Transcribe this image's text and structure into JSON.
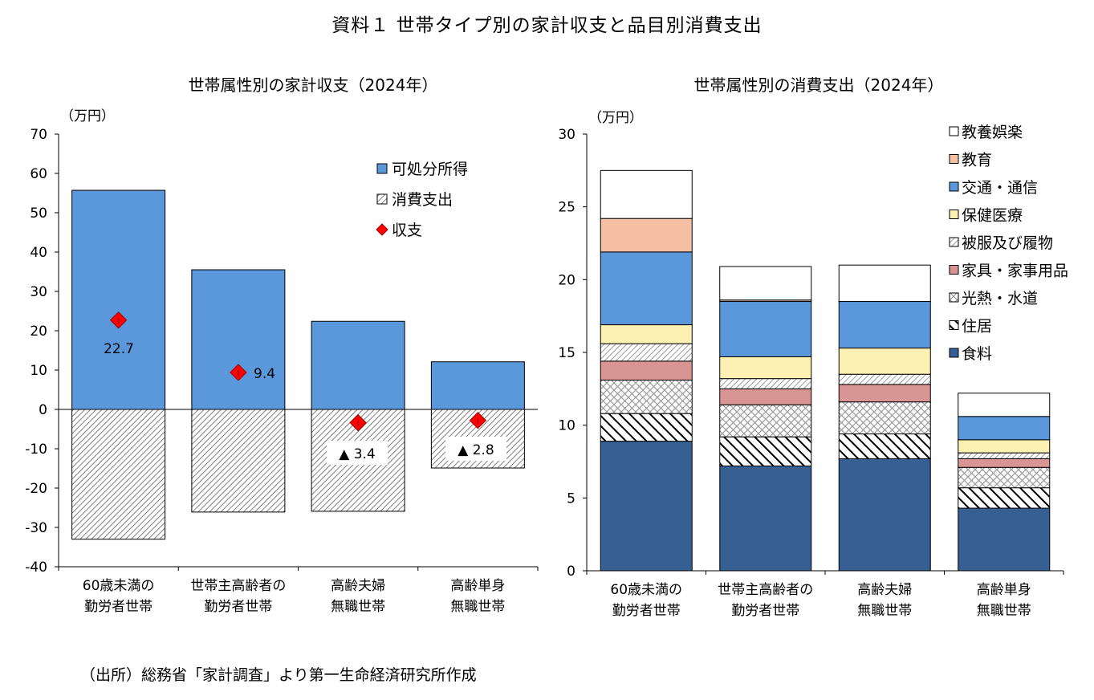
{
  "title": "資料１ 世帯タイプ別の家計収支と品目別消費支出",
  "source": "（出所）総務省「家計調査」より第一生命経済研究所作成",
  "colors": {
    "disposable": "#5b97db",
    "consumption_hatch": "#7f7f7f",
    "balance": "#ff0000",
    "food": "#365f93",
    "housing": "#000000",
    "utilities": "#9a9a9a",
    "furniture": "#d99593",
    "clothing": "#808080",
    "health": "#fdf0b3",
    "transport": "#5b97db",
    "education": "#f5c0a4",
    "recreation": "#ffffff"
  },
  "chart_data": [
    {
      "type": "bar",
      "title": "世帯属性別の家計収支（2024年）",
      "unit_label": "（万円）",
      "categories": [
        [
          "60歳未満の",
          "勤労者世帯"
        ],
        [
          "世帯主高齢者の",
          "勤労者世帯"
        ],
        [
          "高齢夫婦",
          "無職世帯"
        ],
        [
          "高齢単身",
          "無職世帯"
        ]
      ],
      "ylim": [
        -40,
        70
      ],
      "yticks": [
        70,
        60,
        50,
        40,
        30,
        20,
        10,
        0,
        -10,
        -20,
        -30,
        -40
      ],
      "series": [
        {
          "name": "可処分所得",
          "values": [
            55.7,
            35.5,
            22.4,
            12.1
          ]
        },
        {
          "name": "消費支出",
          "values": [
            -33.0,
            -26.1,
            -25.9,
            -14.9
          ]
        },
        {
          "name": "収支",
          "values": [
            22.7,
            9.4,
            -3.4,
            -2.8
          ]
        }
      ],
      "data_labels": [
        "22.7",
        "9.4",
        "▲ 3.4",
        "▲ 2.8"
      ],
      "legend": [
        "可処分所得",
        "消費支出",
        "収支"
      ],
      "legend_position": "top-right"
    },
    {
      "type": "bar",
      "stacked": true,
      "title": "世帯属性別の消費支出（2024年）",
      "unit_label": "（万円）",
      "categories": [
        [
          "60歳未満の",
          "勤労者世帯"
        ],
        [
          "世帯主高齢者の",
          "勤労者世帯"
        ],
        [
          "高齢夫婦",
          "無職世帯"
        ],
        [
          "高齢単身",
          "無職世帯"
        ]
      ],
      "ylim": [
        0,
        30
      ],
      "yticks": [
        30,
        25,
        20,
        15,
        10,
        5,
        0
      ],
      "series": [
        {
          "name": "食料",
          "values": [
            8.9,
            7.2,
            7.7,
            4.3
          ]
        },
        {
          "name": "住居",
          "values": [
            1.9,
            2.0,
            1.7,
            1.4
          ]
        },
        {
          "name": "光熱・水道",
          "values": [
            2.3,
            2.2,
            2.2,
            1.4
          ]
        },
        {
          "name": "家具・家事用品",
          "values": [
            1.3,
            1.1,
            1.2,
            0.6
          ]
        },
        {
          "name": "被服及び履物",
          "values": [
            1.2,
            0.7,
            0.7,
            0.4
          ]
        },
        {
          "name": "保健医療",
          "values": [
            1.3,
            1.5,
            1.8,
            0.9
          ]
        },
        {
          "name": "交通・通信",
          "values": [
            5.0,
            3.8,
            3.2,
            1.6
          ]
        },
        {
          "name": "教育",
          "values": [
            2.3,
            0.1,
            0.0,
            0.0
          ]
        },
        {
          "name": "教養娯楽",
          "values": [
            3.3,
            2.3,
            2.5,
            1.6
          ]
        }
      ],
      "legend": [
        "教養娯楽",
        "教育",
        "交通・通信",
        "保健医療",
        "被服及び履物",
        "家具・家事用品",
        "光熱・水道",
        "住居",
        "食料"
      ],
      "legend_position": "top-right"
    }
  ]
}
